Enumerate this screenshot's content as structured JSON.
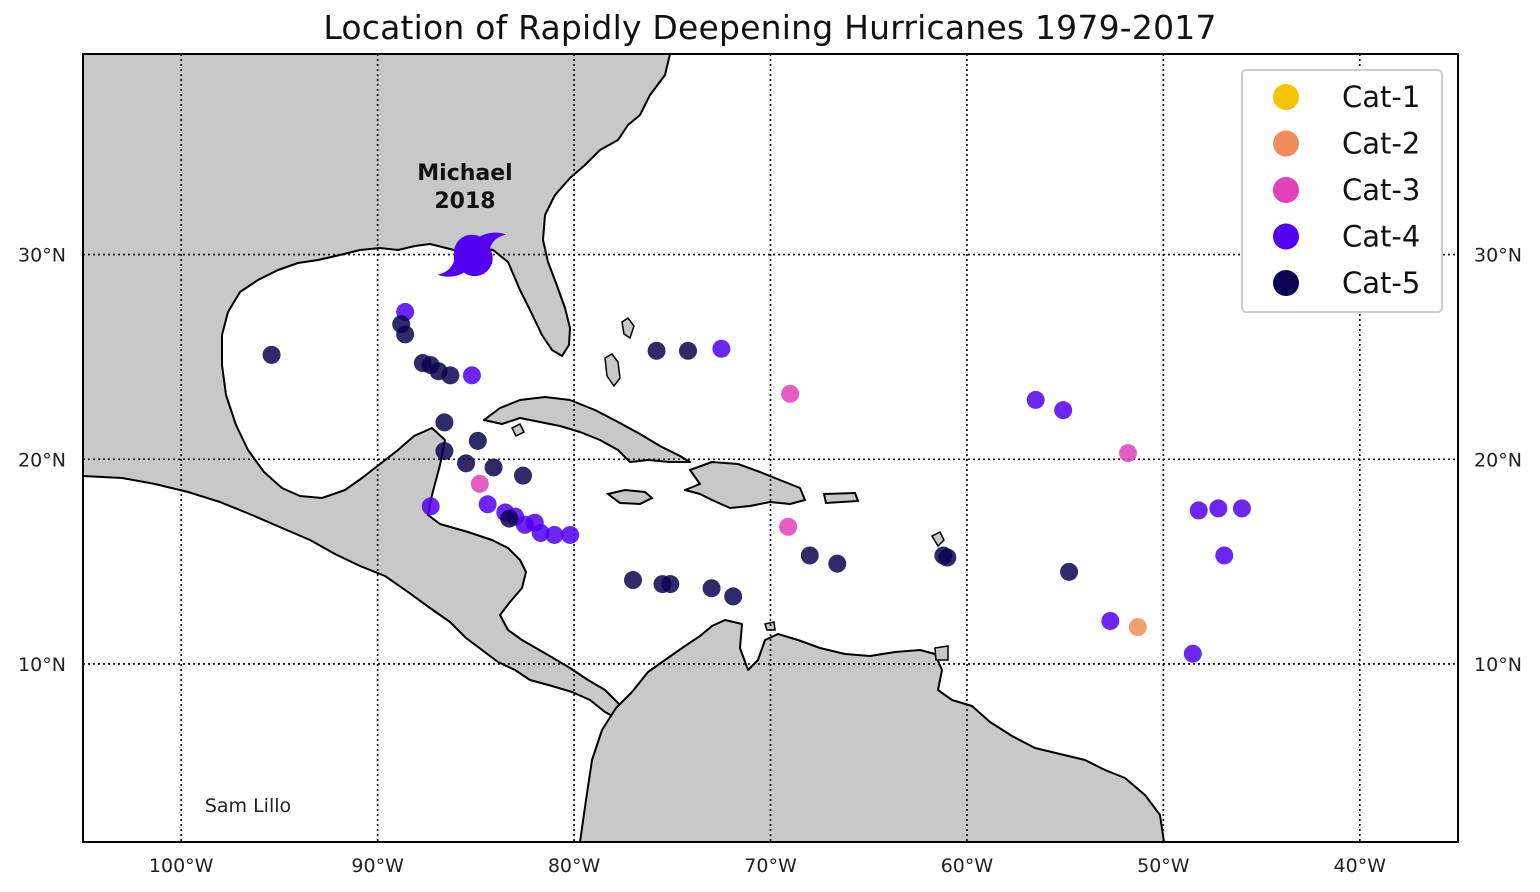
{
  "title": "Location of Rapidly Deepening Hurricanes 1979-2017",
  "credit": "Sam Lillo",
  "annotation": {
    "name": "Michael",
    "year": "2018",
    "lon": -85.2,
    "lat": 30.0,
    "icon": "hurricane-icon",
    "color": "#5200f0"
  },
  "map": {
    "lon_range": [
      -105,
      -35
    ],
    "lat_range": [
      1.3,
      39.8
    ],
    "land_color": "#c8c8c8",
    "water_color": "#ffffff",
    "grid": "dotted"
  },
  "axes": {
    "x_ticks": [
      {
        "lon": -100,
        "label": "100°W"
      },
      {
        "lon": -90,
        "label": "90°W"
      },
      {
        "lon": -80,
        "label": "80°W"
      },
      {
        "lon": -70,
        "label": "70°W"
      },
      {
        "lon": -60,
        "label": "60°W"
      },
      {
        "lon": -50,
        "label": "50°W"
      },
      {
        "lon": -40,
        "label": "40°W"
      }
    ],
    "y_ticks": [
      {
        "lat": 10,
        "label": "10°N"
      },
      {
        "lat": 20,
        "label": "20°N"
      },
      {
        "lat": 30,
        "label": "30°N"
      }
    ]
  },
  "legend": {
    "position": "top-right",
    "entries": [
      {
        "label": "Cat-1",
        "color": "#f5c400"
      },
      {
        "label": "Cat-2",
        "color": "#f08c5a"
      },
      {
        "label": "Cat-3",
        "color": "#e040b8"
      },
      {
        "label": "Cat-4",
        "color": "#5200f0"
      },
      {
        "label": "Cat-5",
        "color": "#0a0550"
      }
    ]
  },
  "chart_data": {
    "type": "scatter",
    "title": "Location of Rapidly Deepening Hurricanes 1979-2017",
    "xlabel": "",
    "ylabel": "",
    "xlim": [
      -105,
      -35
    ],
    "ylim": [
      1.3,
      39.8
    ],
    "grid": true,
    "legend_position": "top-right",
    "series": [
      {
        "name": "Cat-1",
        "color": "#f5c400",
        "points": []
      },
      {
        "name": "Cat-2",
        "color": "#f08c5a",
        "points": [
          [
            -51.3,
            11.8
          ]
        ]
      },
      {
        "name": "Cat-3",
        "color": "#e040b8",
        "points": [
          [
            -84.8,
            18.8
          ],
          [
            -69.0,
            23.2
          ],
          [
            -69.1,
            16.7
          ],
          [
            -51.8,
            20.3
          ]
        ]
      },
      {
        "name": "Cat-4",
        "color": "#5200f0",
        "points": [
          [
            -88.6,
            27.2
          ],
          [
            -85.2,
            24.1
          ],
          [
            -84.4,
            17.8
          ],
          [
            -83.5,
            17.4
          ],
          [
            -82.5,
            16.8
          ],
          [
            -81.7,
            16.4
          ],
          [
            -81.0,
            16.3
          ],
          [
            -80.2,
            16.3
          ],
          [
            -87.3,
            17.7
          ],
          [
            -72.5,
            25.4
          ],
          [
            -56.5,
            22.9
          ],
          [
            -55.1,
            22.4
          ],
          [
            -52.7,
            12.1
          ],
          [
            -48.5,
            10.5
          ],
          [
            -48.2,
            17.5
          ],
          [
            -47.2,
            17.6
          ],
          [
            -46.0,
            17.6
          ],
          [
            -46.9,
            15.3
          ],
          [
            -83.0,
            17.2
          ],
          [
            -82.0,
            16.9
          ]
        ]
      },
      {
        "name": "Cat-5",
        "color": "#0a0550",
        "points": [
          [
            -95.4,
            25.1
          ],
          [
            -88.8,
            26.6
          ],
          [
            -88.6,
            26.1
          ],
          [
            -87.7,
            24.7
          ],
          [
            -87.3,
            24.6
          ],
          [
            -86.9,
            24.3
          ],
          [
            -86.3,
            24.1
          ],
          [
            -86.6,
            21.8
          ],
          [
            -86.6,
            20.4
          ],
          [
            -85.5,
            19.8
          ],
          [
            -84.9,
            20.9
          ],
          [
            -84.1,
            19.6
          ],
          [
            -82.6,
            19.2
          ],
          [
            -75.8,
            25.3
          ],
          [
            -74.2,
            25.3
          ],
          [
            -77.0,
            14.1
          ],
          [
            -75.5,
            13.9
          ],
          [
            -75.1,
            13.9
          ],
          [
            -73.0,
            13.7
          ],
          [
            -71.9,
            13.3
          ],
          [
            -68.0,
            15.3
          ],
          [
            -66.6,
            14.9
          ],
          [
            -61.2,
            15.3
          ],
          [
            -61.0,
            15.2
          ],
          [
            -54.8,
            14.5
          ],
          [
            -83.3,
            17.1
          ]
        ]
      }
    ]
  }
}
